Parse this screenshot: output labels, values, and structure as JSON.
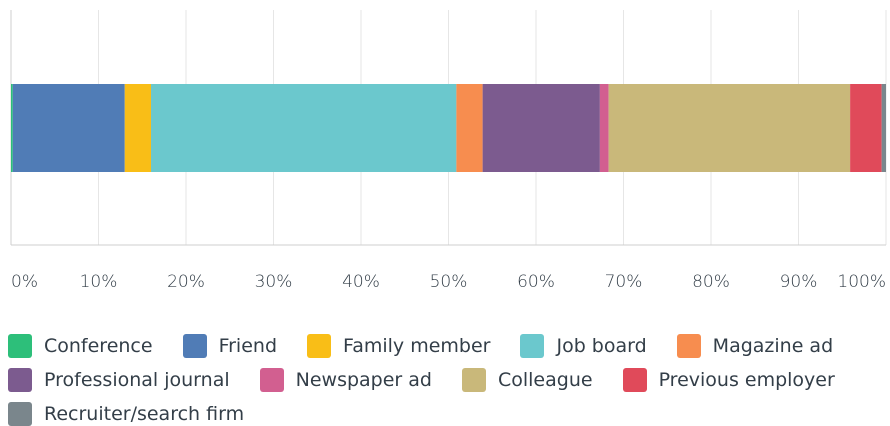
{
  "chart_data": {
    "type": "stacked_bar_horizontal",
    "categories": [
      null
    ],
    "series": [
      {
        "name": "Conference",
        "color": "#2dbf7a",
        "values": [
          0.2
        ]
      },
      {
        "name": "Friend",
        "color": "#507cb6",
        "values": [
          12.8
        ]
      },
      {
        "name": "Family member",
        "color": "#f9be17",
        "values": [
          3.0
        ]
      },
      {
        "name": "Job board",
        "color": "#6bc8cd",
        "values": [
          34.9
        ]
      },
      {
        "name": "Magazine ad",
        "color": "#f78d4f",
        "values": [
          3.0
        ]
      },
      {
        "name": "Professional journal",
        "color": "#7c5b8f",
        "values": [
          13.4
        ]
      },
      {
        "name": "Newspaper ad",
        "color": "#d25f90",
        "values": [
          1.0
        ]
      },
      {
        "name": "Colleague",
        "color": "#c9b87a",
        "values": [
          27.6
        ]
      },
      {
        "name": "Previous employer",
        "color": "#e04a5a",
        "values": [
          3.6
        ]
      },
      {
        "name": "Recruiter/search firm",
        "color": "#7a868c",
        "values": [
          0.5
        ]
      }
    ],
    "xlim": [
      0,
      100
    ],
    "xticks": [
      {
        "value": 0,
        "label": "0%"
      },
      {
        "value": 10,
        "label": "10%"
      },
      {
        "value": 20,
        "label": "20%"
      },
      {
        "value": 30,
        "label": "30%"
      },
      {
        "value": 40,
        "label": "40%"
      },
      {
        "value": 50,
        "label": "50%"
      },
      {
        "value": 60,
        "label": "60%"
      },
      {
        "value": 70,
        "label": "70%"
      },
      {
        "value": 80,
        "label": "80%"
      },
      {
        "value": 90,
        "label": "90%"
      },
      {
        "value": 100,
        "label": "100%"
      }
    ],
    "grid": true
  }
}
